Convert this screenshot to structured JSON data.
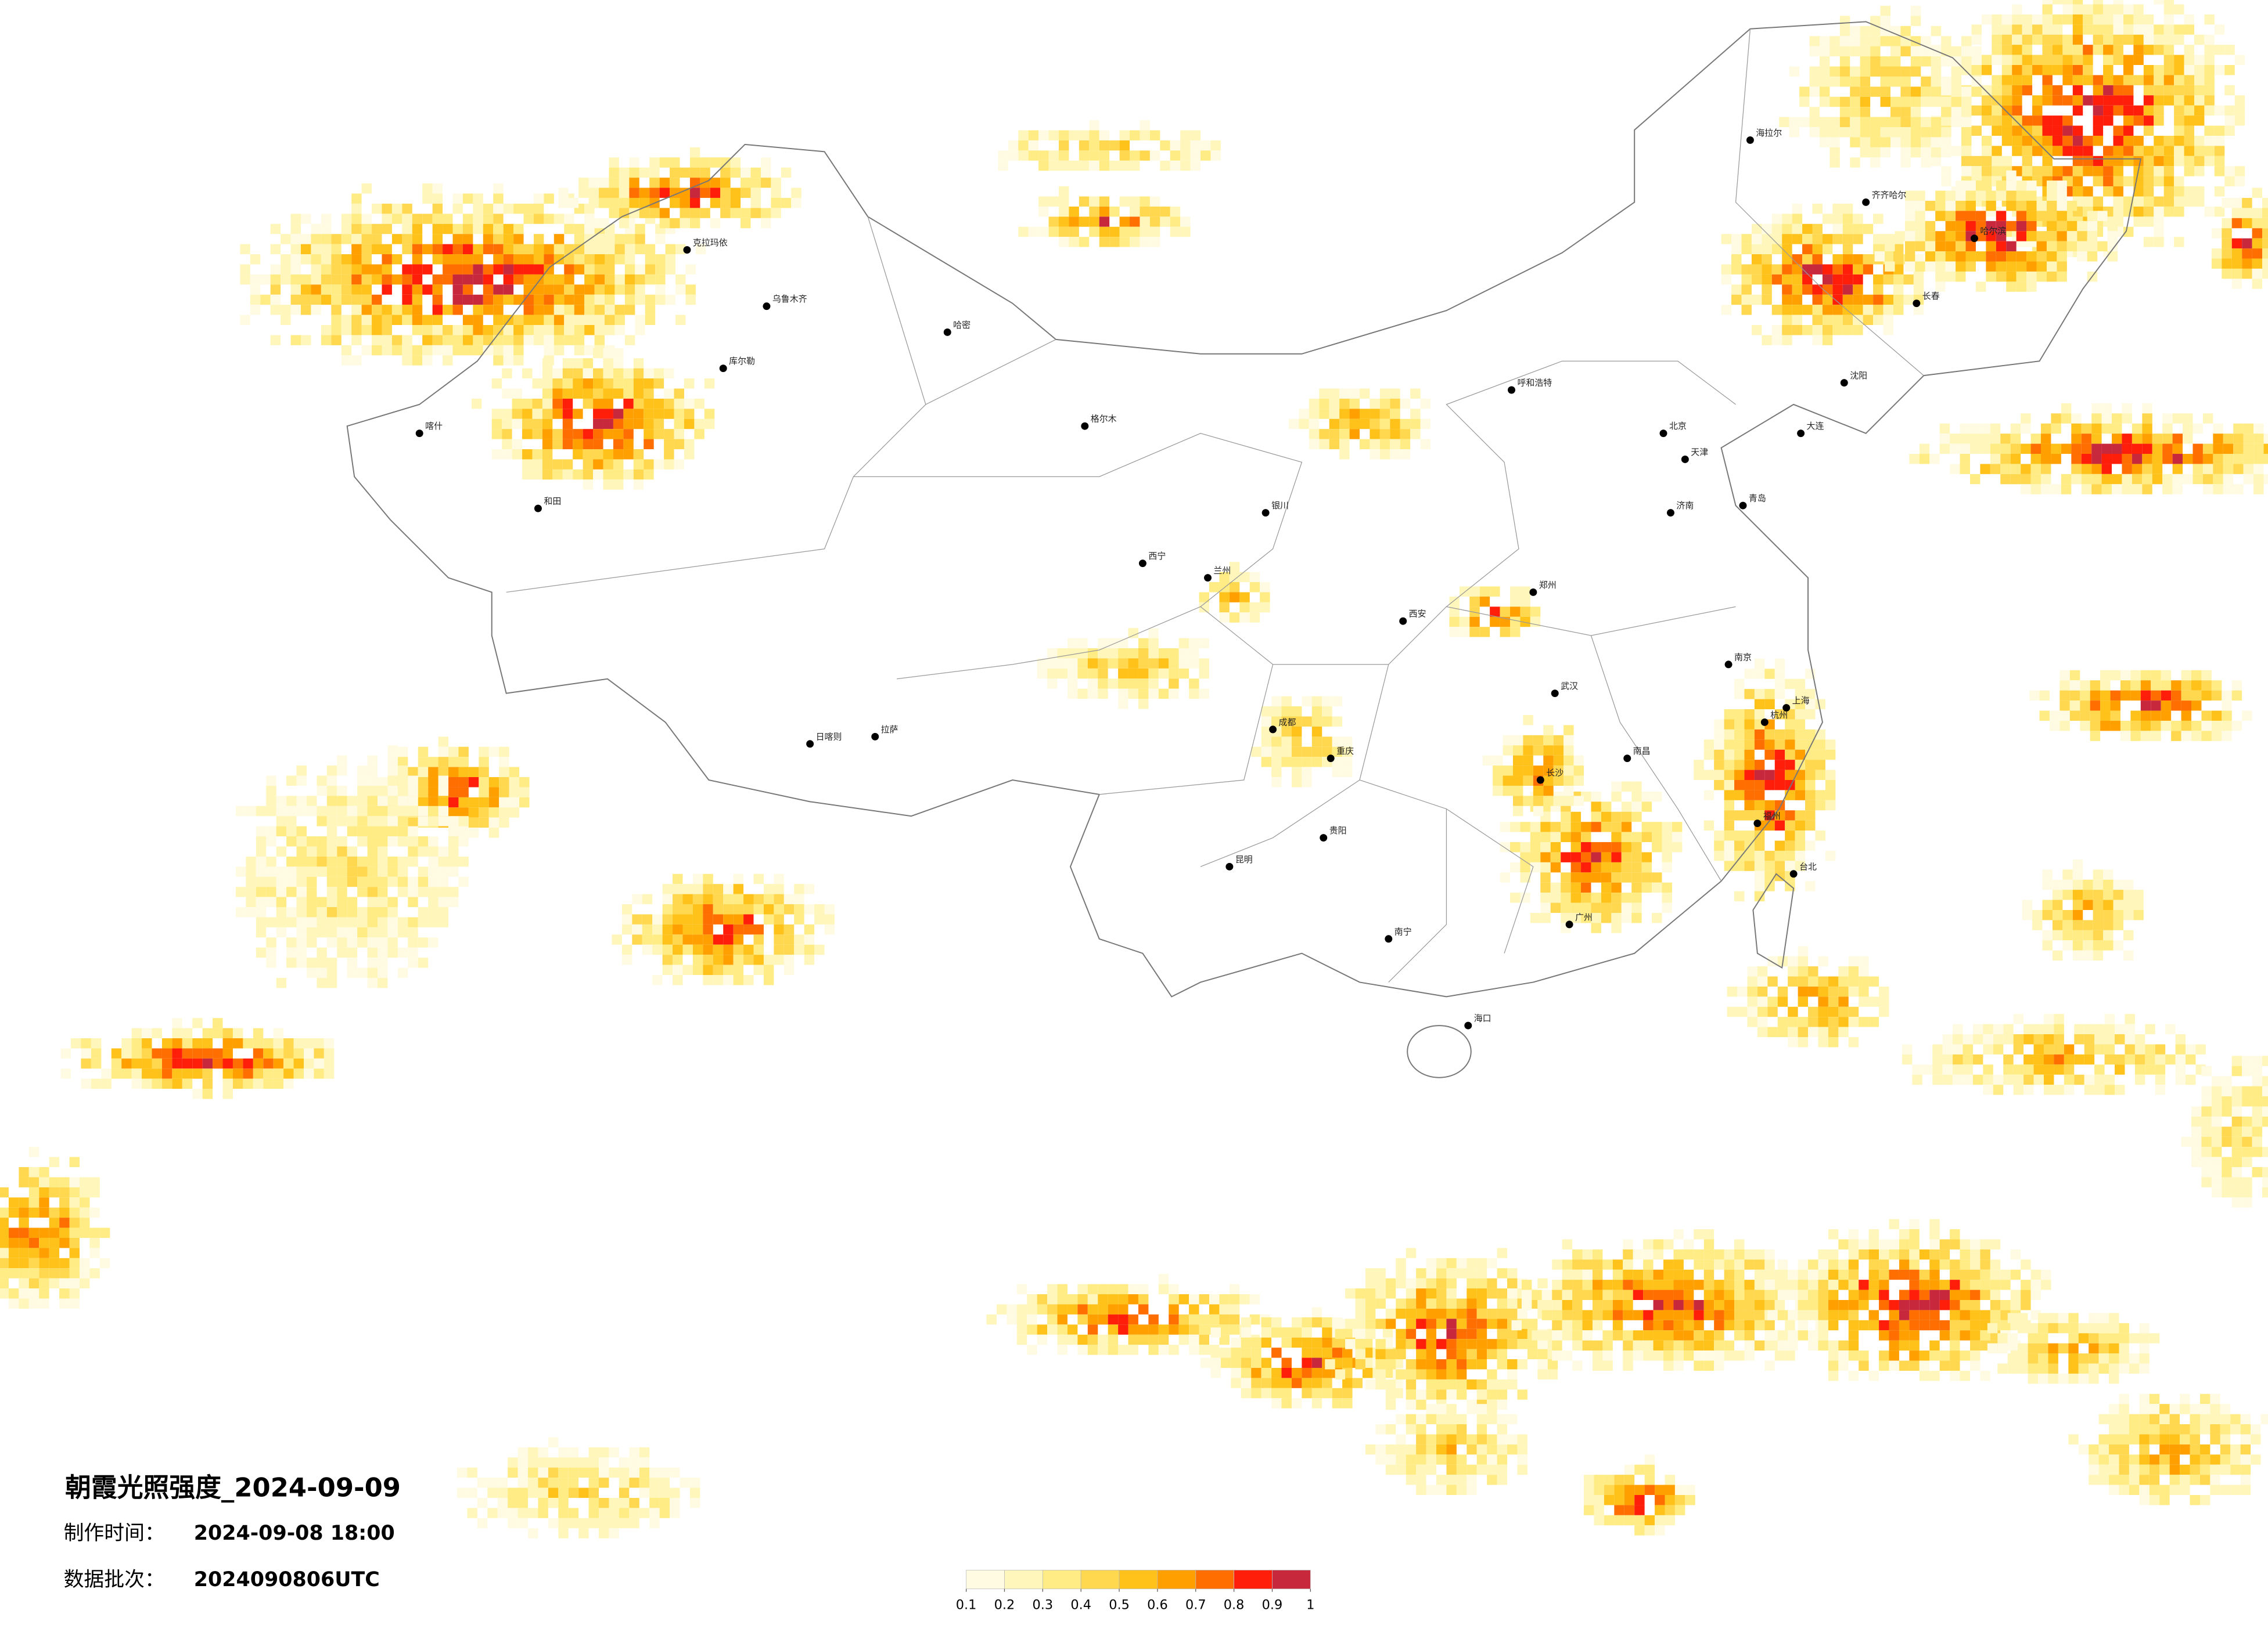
{
  "title": "朝霞光照强度_2024-09-09",
  "production_time": {
    "label": "制作时间：",
    "value": "2024-09-08 18:00"
  },
  "data_batch": {
    "label": "数据批次：",
    "value": "2024090806UTC"
  },
  "colorbar": {
    "ticks": [
      0.1,
      0.2,
      0.3,
      0.4,
      0.5,
      0.6,
      0.7,
      0.8,
      0.9,
      1
    ],
    "colors": [
      "#fffbe3",
      "#fff6bb",
      "#ffec85",
      "#ffd84f",
      "#ffc21a",
      "#ffa000",
      "#ff6e00",
      "#ff1e0a",
      "#c8283c"
    ]
  },
  "cities": [
    "北京",
    "天津",
    "上海",
    "广州",
    "武汉",
    "成都",
    "重庆",
    "西安",
    "昆明",
    "乌鲁木齐",
    "哈尔滨",
    "长春",
    "沈阳",
    "南京",
    "杭州",
    "福州",
    "拉萨",
    "兰州",
    "郑州",
    "济南",
    "呼和浩特",
    "银川",
    "西宁",
    "南宁",
    "贵阳",
    "长沙",
    "南昌",
    "海口",
    "台北",
    "喀什",
    "和田",
    "克拉玛依",
    "哈密",
    "库尔勒",
    "格尔木",
    "日喀则",
    "齐齐哈尔",
    "海拉尔",
    "大连",
    "青岛"
  ]
}
